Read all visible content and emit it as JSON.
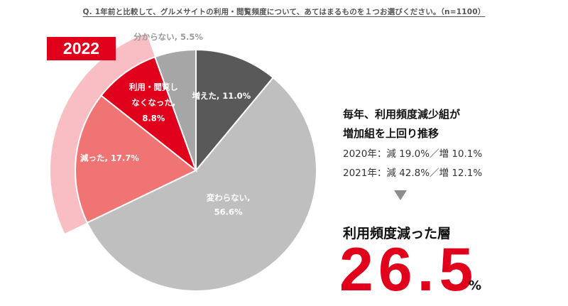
{
  "question": "Q. 1年前と比較して、グルメサイトの利用・閲覧頻度について、あてはまるものを１つお選びください。（n=1100）",
  "year_badge": "2022",
  "summary": {
    "headline_line1": "毎年、利用頻度減少組が",
    "headline_line2": "増加組を上回り推移",
    "note_2020": "2020年：減 19.0%／増 10.1%",
    "note_2021": "2021年：減 42.8%／増 12.1%",
    "result_label": "利用頻度減った層",
    "result_value": "26.5",
    "result_unit": "%"
  },
  "colors": {
    "accent": "#e0001b",
    "highlight_band": "#f8b3b9",
    "increased": "#595959",
    "unchanged": "#bfbfbf",
    "decreased": "#f07474",
    "stopped": "#e0001b",
    "unknown": "#a6a6a6"
  },
  "chart_data": {
    "type": "pie",
    "title": "",
    "start_angle_deg": 0,
    "direction": "clockwise",
    "slices": [
      {
        "name": "増えた",
        "label_lines": [
          "増えた, 11.0%"
        ],
        "value": 11.0,
        "color": "#595959",
        "label_color": "#ffffff"
      },
      {
        "name": "変わらない",
        "label_lines": [
          "変わらない,",
          "56.6%"
        ],
        "value": 56.6,
        "color": "#bfbfbf",
        "label_color": "#ffffff"
      },
      {
        "name": "減った",
        "label_lines": [
          "減った, 17.7%"
        ],
        "value": 17.7,
        "color": "#f07474",
        "label_color": "#ffffff"
      },
      {
        "name": "利用・閲覧しなくなった",
        "label_lines": [
          "利用・閲覧し",
          "なくなった,",
          "8.8%"
        ],
        "value": 8.8,
        "color": "#e0001b",
        "label_color": "#ffffff"
      },
      {
        "name": "分からない",
        "label_lines": [
          "分からない, 5.5%"
        ],
        "value": 5.5,
        "color": "#a6a6a6",
        "label_color": "#999999"
      }
    ],
    "highlighted_slices": [
      "減った",
      "利用・閲覧しなくなった"
    ]
  }
}
